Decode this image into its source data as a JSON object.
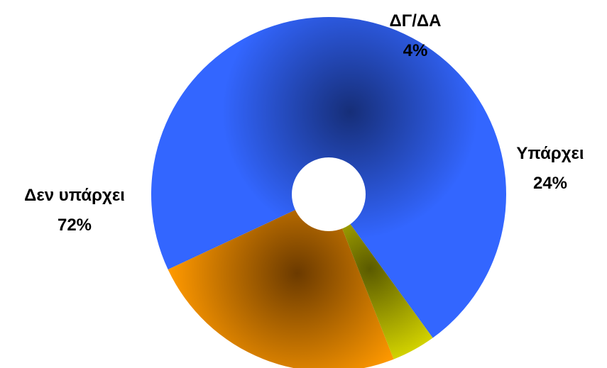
{
  "chart_data": {
    "type": "pie",
    "title": "",
    "categories": [
      "Υπάρχει",
      "Δεν υπάρχει",
      "ΔΓ/ΔΑ"
    ],
    "values": [
      24,
      72,
      4
    ],
    "value_labels": [
      "24%",
      "72%",
      "4%"
    ],
    "colors": [
      "#ff9900",
      "#3366ff",
      "#ffff00"
    ],
    "dark_colors": [
      "#6b3a00",
      "#162e78",
      "#5a5a00"
    ],
    "donut": true,
    "legend": "none",
    "label_position": "outside"
  }
}
